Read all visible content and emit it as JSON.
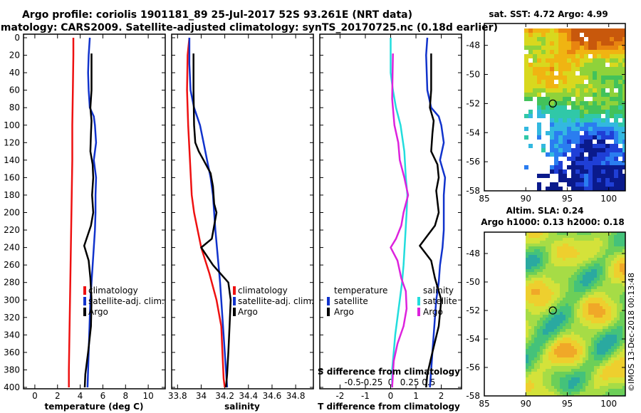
{
  "title_line1": "Argo profile: coriolis 1901181_89 25-Jul-2017 52S 93.261E (NRT data)",
  "title_line2": "Climatology: CARS2009. Satellite-adjusted climatology: synTS_20170725.nc (0.18d earlier)",
  "credit": "©IMOS 13-Dec-2018 00:13:48",
  "colors": {
    "red": "#ee1111",
    "blue": "#1133cc",
    "black": "#000000",
    "cyan": "#22dddd",
    "magenta": "#dd22dd"
  },
  "depth_ticks": [
    0,
    20,
    40,
    60,
    80,
    100,
    120,
    140,
    160,
    180,
    200,
    220,
    240,
    260,
    280,
    300,
    320,
    340,
    360,
    380,
    400
  ],
  "chart_data": [
    {
      "type": "line",
      "id": "temperature",
      "xlabel": "temperature (deg C)",
      "xlim": [
        -1,
        11.5
      ],
      "xticks": [
        0,
        2,
        4,
        6,
        8,
        10
      ],
      "ylim": [
        0,
        400
      ],
      "y_inverted": true,
      "legend": [
        "climatology",
        "satellite-adj. clim.",
        "Argo"
      ],
      "series": [
        {
          "name": "climatology",
          "color": "red",
          "points": [
            [
              3.4,
              0
            ],
            [
              3.4,
              20
            ],
            [
              3.35,
              60
            ],
            [
              3.3,
              100
            ],
            [
              3.3,
              140
            ],
            [
              3.25,
              180
            ],
            [
              3.2,
              220
            ],
            [
              3.15,
              260
            ],
            [
              3.1,
              300
            ],
            [
              3.05,
              340
            ],
            [
              3.0,
              380
            ],
            [
              3.0,
              400
            ]
          ]
        },
        {
          "name": "satellite-adj. clim.",
          "color": "blue",
          "points": [
            [
              4.85,
              0
            ],
            [
              4.75,
              20
            ],
            [
              4.7,
              40
            ],
            [
              4.75,
              60
            ],
            [
              4.85,
              80
            ],
            [
              5.2,
              90
            ],
            [
              5.3,
              100
            ],
            [
              5.4,
              120
            ],
            [
              5.2,
              140
            ],
            [
              5.4,
              160
            ],
            [
              5.35,
              180
            ],
            [
              5.35,
              200
            ],
            [
              5.3,
              220
            ],
            [
              5.2,
              240
            ],
            [
              5.1,
              260
            ],
            [
              5.0,
              280
            ],
            [
              4.9,
              300
            ],
            [
              4.85,
              320
            ],
            [
              4.8,
              340
            ],
            [
              4.75,
              360
            ],
            [
              4.7,
              380
            ],
            [
              4.65,
              400
            ]
          ]
        },
        {
          "name": "Argo",
          "color": "black",
          "points": [
            [
              5.0,
              18
            ],
            [
              5.0,
              60
            ],
            [
              4.9,
              80
            ],
            [
              5.0,
              95
            ],
            [
              4.95,
              110
            ],
            [
              4.9,
              130
            ],
            [
              5.1,
              145
            ],
            [
              5.15,
              160
            ],
            [
              5.05,
              180
            ],
            [
              5.15,
              200
            ],
            [
              4.95,
              215
            ],
            [
              4.35,
              238
            ],
            [
              4.75,
              255
            ],
            [
              4.9,
              275
            ],
            [
              5.0,
              300
            ],
            [
              4.95,
              330
            ],
            [
              4.7,
              360
            ],
            [
              4.45,
              385
            ],
            [
              4.4,
              400
            ]
          ]
        }
      ]
    },
    {
      "type": "line",
      "id": "salinity",
      "xlabel": "salinity",
      "xlim": [
        33.75,
        34.95
      ],
      "xticks": [
        33.8,
        34.0,
        34.2,
        34.4,
        34.6,
        34.8
      ],
      "xtick_labels": [
        "33.8",
        "34",
        "34.2",
        "34.4",
        "34.6",
        "34.8"
      ],
      "ylim": [
        0,
        400
      ],
      "y_inverted": true,
      "legend": [
        "climatology",
        "satellite-adj. clim.",
        "Argo"
      ],
      "series": [
        {
          "name": "climatology",
          "color": "red",
          "points": [
            [
              33.9,
              0
            ],
            [
              33.885,
              20
            ],
            [
              33.88,
              60
            ],
            [
              33.89,
              100
            ],
            [
              33.905,
              140
            ],
            [
              33.92,
              180
            ],
            [
              33.94,
              200
            ],
            [
              33.97,
              220
            ],
            [
              34.0,
              240
            ],
            [
              34.07,
              270
            ],
            [
              34.13,
              300
            ],
            [
              34.17,
              330
            ],
            [
              34.18,
              360
            ],
            [
              34.19,
              390
            ],
            [
              34.2,
              400
            ]
          ]
        },
        {
          "name": "satellite-adj. clim.",
          "color": "blue",
          "points": [
            [
              33.9,
              0
            ],
            [
              33.9,
              30
            ],
            [
              33.91,
              60
            ],
            [
              33.94,
              80
            ],
            [
              33.99,
              100
            ],
            [
              34.02,
              120
            ],
            [
              34.05,
              140
            ],
            [
              34.08,
              160
            ],
            [
              34.1,
              180
            ],
            [
              34.11,
              200
            ],
            [
              34.12,
              220
            ],
            [
              34.14,
              250
            ],
            [
              34.16,
              280
            ],
            [
              34.18,
              320
            ],
            [
              34.2,
              360
            ],
            [
              34.22,
              400
            ]
          ]
        },
        {
          "name": "Argo",
          "color": "black",
          "points": [
            [
              33.935,
              18
            ],
            [
              33.935,
              60
            ],
            [
              33.94,
              100
            ],
            [
              33.95,
              120
            ],
            [
              33.98,
              130
            ],
            [
              34.02,
              140
            ],
            [
              34.08,
              155
            ],
            [
              34.1,
              170
            ],
            [
              34.11,
              190
            ],
            [
              34.13,
              200
            ],
            [
              34.11,
              215
            ],
            [
              34.09,
              230
            ],
            [
              34.0,
              240
            ],
            [
              34.1,
              260
            ],
            [
              34.23,
              280
            ],
            [
              34.25,
              300
            ],
            [
              34.24,
              330
            ],
            [
              34.23,
              360
            ],
            [
              34.22,
              385
            ],
            [
              34.21,
              400
            ]
          ]
        }
      ]
    },
    {
      "type": "line",
      "id": "difference",
      "xlabel": "T difference from climatology",
      "xlabel_top": "S difference from climatology",
      "xlim": [
        -2.8,
        2.8
      ],
      "xticks": [
        -2,
        -1,
        0,
        1,
        2
      ],
      "s_ticks": [
        -0.5,
        -0.25,
        0,
        0.25,
        0.5
      ],
      "s_tick_labels": [
        "-0.5",
        "-0.25",
        "0",
        "0.25",
        "0.5"
      ],
      "ylim": [
        0,
        400
      ],
      "y_inverted": true,
      "legend_temperature_title": "temperature",
      "legend_salinity_title": "salinity",
      "legend_temperature": [
        "satellite",
        "Argo"
      ],
      "legend_salinity": [
        "satellite",
        "Argo"
      ],
      "series": [
        {
          "name": "T satellite",
          "color": "blue",
          "points": [
            [
              1.45,
              0
            ],
            [
              1.4,
              20
            ],
            [
              1.45,
              60
            ],
            [
              1.6,
              80
            ],
            [
              1.9,
              90
            ],
            [
              2.0,
              100
            ],
            [
              2.1,
              120
            ],
            [
              1.95,
              140
            ],
            [
              2.15,
              160
            ],
            [
              2.1,
              180
            ],
            [
              2.1,
              200
            ],
            [
              2.1,
              220
            ],
            [
              2.05,
              240
            ],
            [
              1.95,
              260
            ],
            [
              1.9,
              280
            ],
            [
              1.8,
              300
            ],
            [
              1.75,
              320
            ],
            [
              1.7,
              340
            ],
            [
              1.65,
              360
            ],
            [
              1.6,
              380
            ],
            [
              1.55,
              400
            ]
          ]
        },
        {
          "name": "T Argo",
          "color": "black",
          "points": [
            [
              1.6,
              18
            ],
            [
              1.6,
              60
            ],
            [
              1.55,
              80
            ],
            [
              1.7,
              95
            ],
            [
              1.65,
              110
            ],
            [
              1.6,
              130
            ],
            [
              1.85,
              145
            ],
            [
              1.9,
              160
            ],
            [
              1.8,
              175
            ],
            [
              1.9,
              200
            ],
            [
              1.75,
              215
            ],
            [
              1.15,
              238
            ],
            [
              1.6,
              255
            ],
            [
              1.75,
              275
            ],
            [
              2.0,
              300
            ],
            [
              1.9,
              330
            ],
            [
              1.65,
              360
            ],
            [
              1.45,
              385
            ],
            [
              1.4,
              400
            ]
          ]
        },
        {
          "name": "S satellite",
          "color": "cyan",
          "points": [
            [
              0,
              0
            ],
            [
              0,
              40
            ],
            [
              0.03,
              60
            ],
            [
              0.07,
              80
            ],
            [
              0.13,
              100
            ],
            [
              0.18,
              130
            ],
            [
              0.2,
              160
            ],
            [
              0.22,
              180
            ],
            [
              0.21,
              200
            ],
            [
              0.19,
              230
            ],
            [
              0.17,
              260
            ],
            [
              0.15,
              280
            ],
            [
              0.12,
              300
            ],
            [
              0.09,
              320
            ],
            [
              0.06,
              340
            ],
            [
              0.04,
              360
            ],
            [
              0.02,
              380
            ],
            [
              0.02,
              400
            ]
          ]
        },
        {
          "name": "S Argo",
          "color": "magenta",
          "points": [
            [
              0.03,
              18
            ],
            [
              0.02,
              70
            ],
            [
              0.05,
              100
            ],
            [
              0.1,
              120
            ],
            [
              0.12,
              140
            ],
            [
              0.18,
              160
            ],
            [
              0.23,
              180
            ],
            [
              0.17,
              200
            ],
            [
              0.14,
              215
            ],
            [
              0.07,
              230
            ],
            [
              0.0,
              240
            ],
            [
              0.09,
              255
            ],
            [
              0.14,
              275
            ],
            [
              0.2,
              290
            ],
            [
              0.21,
              310
            ],
            [
              0.17,
              330
            ],
            [
              0.09,
              350
            ],
            [
              0.04,
              370
            ],
            [
              0.02,
              400
            ]
          ]
        }
      ]
    },
    {
      "type": "heatmap",
      "id": "sst_map",
      "title": "sat. SST: 4.72 Argo: 4.99",
      "xlim": [
        85,
        102
      ],
      "ylim": [
        -58,
        -46.5
      ],
      "xticks": [
        85,
        90,
        95,
        100
      ],
      "yticks": [
        -58,
        -56,
        -54,
        -52,
        -50,
        -48
      ],
      "marker": {
        "lon": 93.26,
        "lat": -52.0
      }
    },
    {
      "type": "heatmap",
      "id": "sla_map",
      "title": "Altim. SLA: 0.24",
      "title2": "Argo h1000: 0.13 h2000: 0.18",
      "xlim": [
        85,
        102
      ],
      "ylim": [
        -58,
        -46.5
      ],
      "xticks": [
        85,
        90,
        95,
        100
      ],
      "yticks": [
        -58,
        -56,
        -54,
        -52,
        -50,
        -48
      ],
      "marker": {
        "lon": 93.26,
        "lat": -52.0
      }
    }
  ]
}
